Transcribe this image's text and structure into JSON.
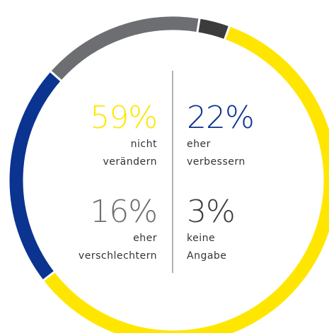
{
  "chart_data": {
    "type": "donut",
    "categories": [
      "nicht verändern",
      "eher verbessern",
      "eher verschlechtern",
      "keine Angabe"
    ],
    "values": [
      59,
      22,
      16,
      3
    ],
    "value_labels": [
      "59%",
      "22%",
      "16%",
      "3%"
    ],
    "colors": [
      "#ffe600",
      "#0b3390",
      "#6d6e71",
      "#3c3c3c"
    ]
  }
}
